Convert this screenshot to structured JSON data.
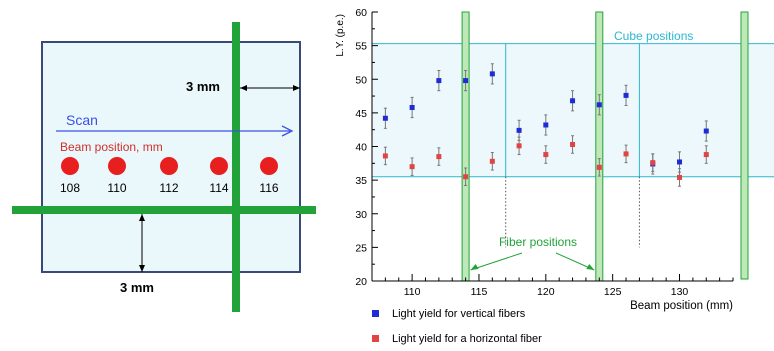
{
  "colors": {
    "blue": "#1f2bd6",
    "red": "#e24343",
    "green": "#22a33a",
    "cyan": "#2bb8d0",
    "scan_blue": "#3b50e6",
    "panel_fill": "#eaf8fb",
    "cube_fill": "#dff4f8"
  },
  "left_panel": {
    "dim_right": "3 mm",
    "dim_bottom": "3 mm",
    "scan_label": "Scan",
    "beam_label": "Beam position, mm",
    "beam_positions": [
      "108",
      "110",
      "112",
      "114",
      "116"
    ]
  },
  "chart_data": {
    "type": "scatter",
    "ylabel": "L.Y. (p.e.)",
    "xlabel": "Beam position (mm)",
    "xlim": [
      107,
      134
    ],
    "ylim": [
      20,
      60
    ],
    "x_ticks": [
      110,
      115,
      120,
      125,
      130
    ],
    "y_ticks": [
      20,
      25,
      30,
      35,
      40,
      45,
      50,
      55,
      60
    ],
    "x_tick_labels": [
      "110",
      "115",
      "120",
      "125",
      "130"
    ],
    "y_tick_labels": [
      "20",
      "25",
      "30",
      "35",
      "40",
      "45",
      "50",
      "55",
      "60"
    ],
    "grid": false,
    "series": [
      {
        "name": "Light yield for vertical fibers",
        "color": "#1f2bd6",
        "x": [
          108,
          110,
          112,
          114,
          116,
          118,
          120,
          122,
          124,
          126,
          128,
          130,
          132
        ],
        "y": [
          44.2,
          45.8,
          49.8,
          49.8,
          50.8,
          42.4,
          43.2,
          46.8,
          46.2,
          47.6,
          37.4,
          37.7,
          42.3
        ],
        "err": [
          1.5,
          1.5,
          1.5,
          1.5,
          1.5,
          1.5,
          1.5,
          1.5,
          1.5,
          1.5,
          1.5,
          1.5,
          1.5
        ]
      },
      {
        "name": "Light yield for a horizontal fiber",
        "color": "#e24343",
        "x": [
          108,
          110,
          112,
          114,
          116,
          118,
          120,
          122,
          124,
          126,
          128,
          130,
          132
        ],
        "y": [
          38.6,
          37.0,
          38.5,
          35.5,
          37.8,
          40.1,
          38.8,
          40.3,
          36.9,
          38.9,
          37.6,
          35.4,
          38.8
        ],
        "err": [
          1.3,
          1.3,
          1.3,
          1.3,
          1.3,
          1.3,
          1.3,
          1.3,
          1.3,
          1.3,
          1.3,
          1.3,
          1.3
        ]
      }
    ],
    "cube_band": [
      35.5,
      55.3
    ],
    "fiber_positions_x": [
      114,
      124
    ],
    "cube_boundaries_x": [
      117,
      127
    ],
    "annotations": {
      "cube_label": "Cube   positions",
      "fiber_label": "Fiber positions"
    }
  }
}
